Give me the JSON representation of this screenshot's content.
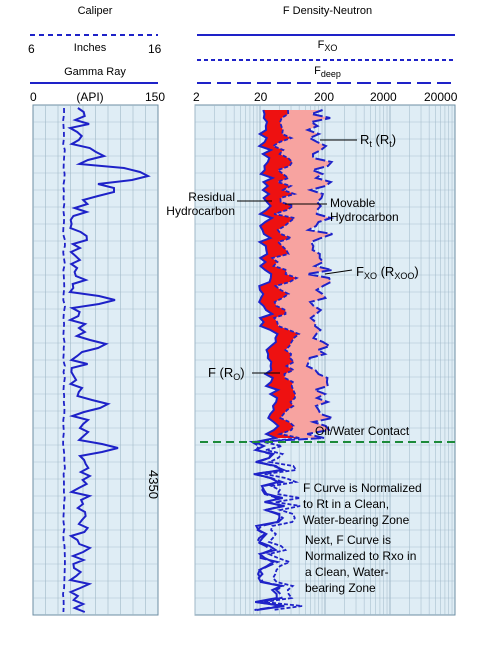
{
  "left_track": {
    "caliper": {
      "title": "Caliper",
      "min": "6",
      "unit": "Inches",
      "max": "16"
    },
    "gamma": {
      "title": "Gamma Ray",
      "min": "0",
      "unit": "(API)",
      "max": "150"
    },
    "depth_label": "4350"
  },
  "right_track": {
    "f_title": "F Density-Neutron",
    "fxo_main": "F",
    "fxo_sub": "XO",
    "fdeep_main": "F",
    "fdeep_sub": "deep",
    "scale": [
      "2",
      "20",
      "200",
      "2000",
      "20000"
    ]
  },
  "annotations": {
    "rt_main": "R",
    "rt_sub": "t",
    "rt_paren_main": "(R",
    "rt_paren_sub": "t",
    "rt_close": ")",
    "residual_1": "Residual",
    "residual_2": "Hydrocarbon",
    "movable_1": "Movable",
    "movable_2": "Hydrocarbon",
    "fxo_main": "F",
    "fxo_sub": "XO",
    "fxo_paren": "(R",
    "fxo_paren_sub": "XOO",
    "fxo_close": ")",
    "fro_pre": "F (R",
    "fro_sub": "O",
    "fro_close": ")",
    "owc": "Oil/Water Contact",
    "note1": [
      "F Curve is Normalized",
      "to Rt in a Clean,",
      "Water-bearing Zone"
    ],
    "note2": [
      "Next, F Curve is",
      "Normalized to Rxo in",
      "a Clean, Water-",
      "bearing Zone"
    ]
  },
  "colors": {
    "curve_blue": "#1e22c8",
    "track_bg": "#dfedf5",
    "grid": "#9fb7c7",
    "movable_fill": "#f7a3a0",
    "residual_fill": "#ee1111",
    "contact_line": "#1c8a3a"
  }
}
